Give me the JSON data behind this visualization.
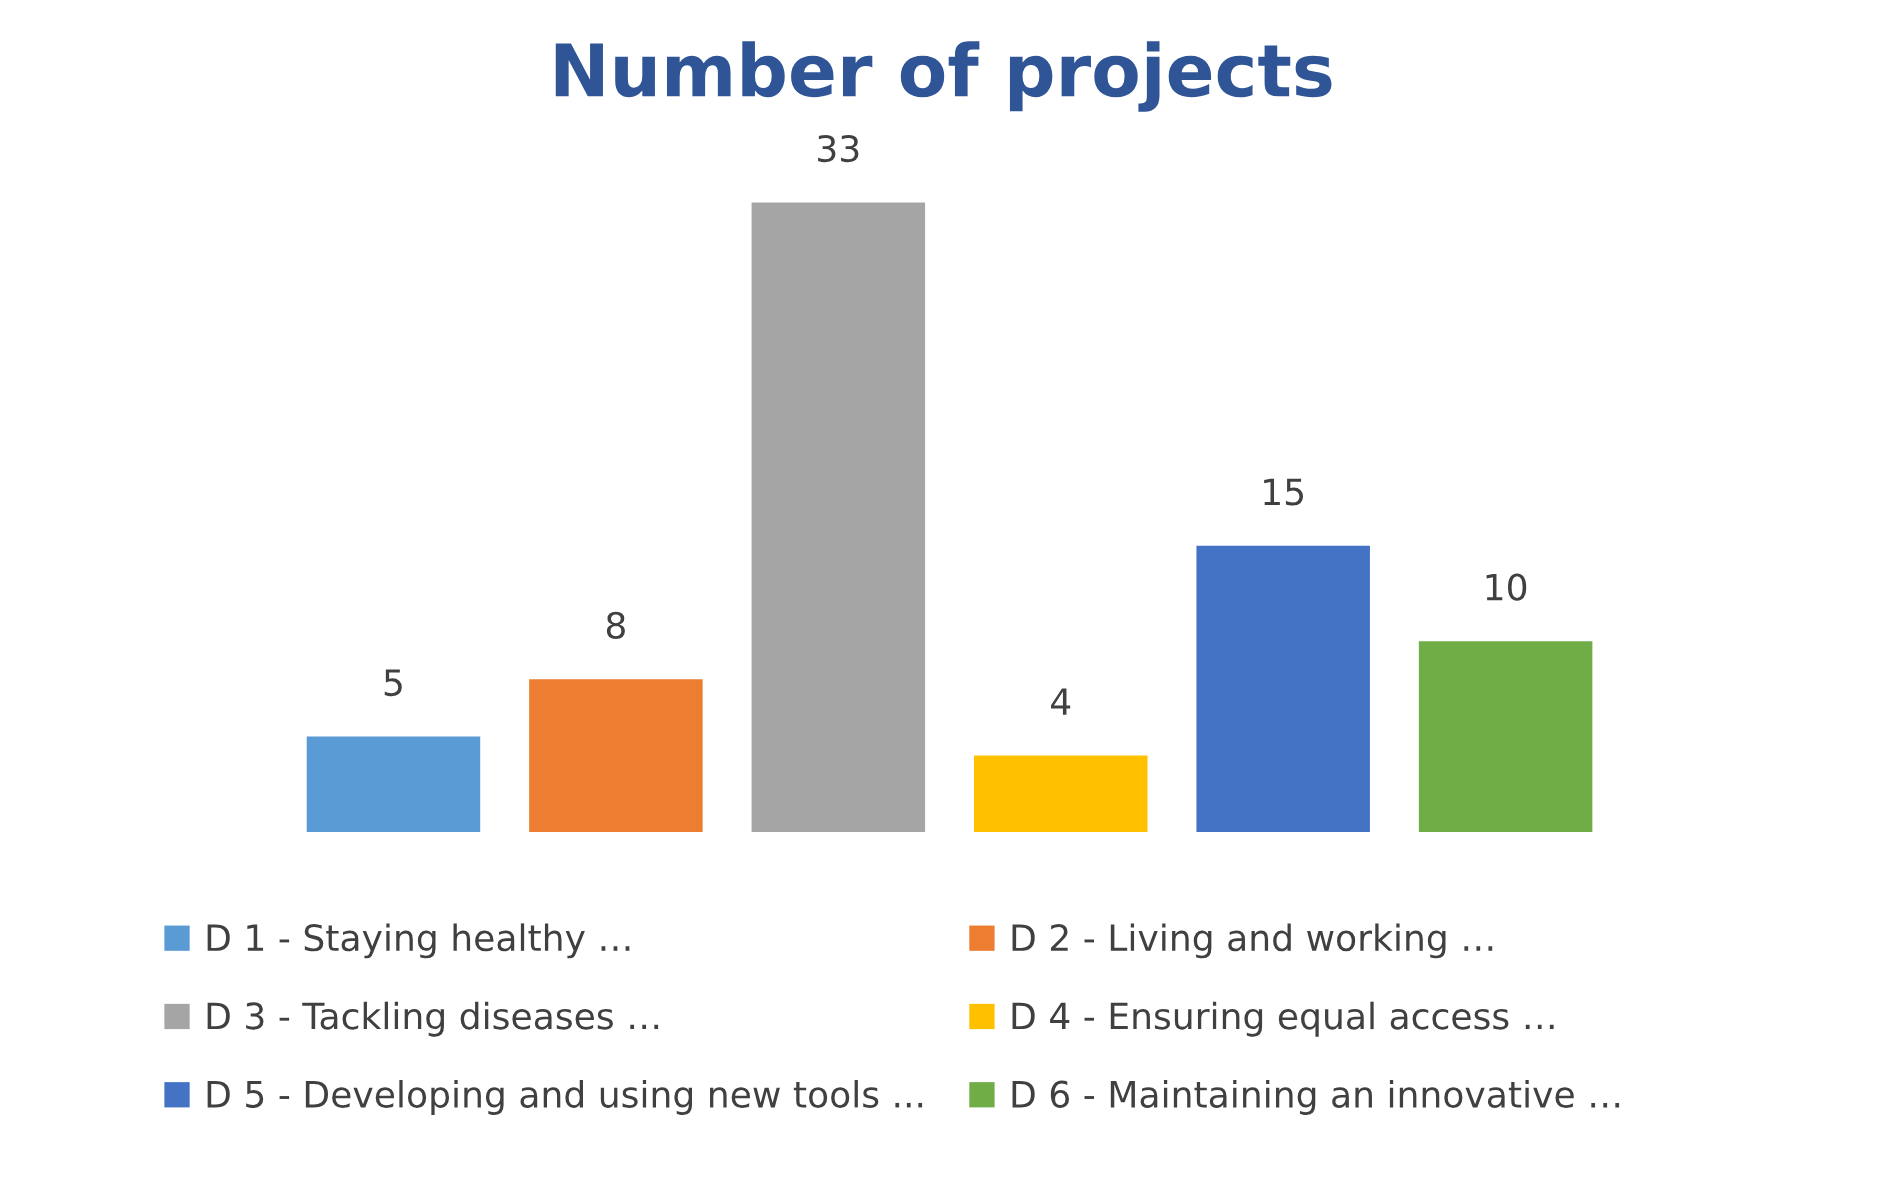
{
  "chart_data": {
    "type": "bar",
    "title": "Number of projects",
    "categories": [
      null,
      null,
      null,
      null,
      null,
      null
    ],
    "series": [
      {
        "name": "D 1 - Staying healthy …",
        "color": "#5b9bd5",
        "values": [
          5,
          null,
          null,
          null,
          null,
          null
        ]
      },
      {
        "name": "D 2 - Living and working …",
        "color": "#ed7d31",
        "values": [
          null,
          8,
          null,
          null,
          null,
          null
        ]
      },
      {
        "name": "D 3 - Tackling diseases …",
        "color": "#a5a5a5",
        "values": [
          null,
          null,
          33,
          null,
          null,
          null
        ]
      },
      {
        "name": "D 4 - Ensuring equal access …",
        "color": "#ffc000",
        "values": [
          null,
          null,
          null,
          4,
          null,
          null
        ]
      },
      {
        "name": "D 5 - Developing and using new tools ...",
        "color": "#4472c4",
        "values": [
          null,
          null,
          null,
          null,
          15,
          null
        ]
      },
      {
        "name": "D 6 - Maintaining an innovative …",
        "color": "#70ad47",
        "values": [
          null,
          null,
          null,
          null,
          null,
          10
        ]
      }
    ],
    "stacked": true,
    "data_labels": true,
    "legend": "bottom"
  }
}
